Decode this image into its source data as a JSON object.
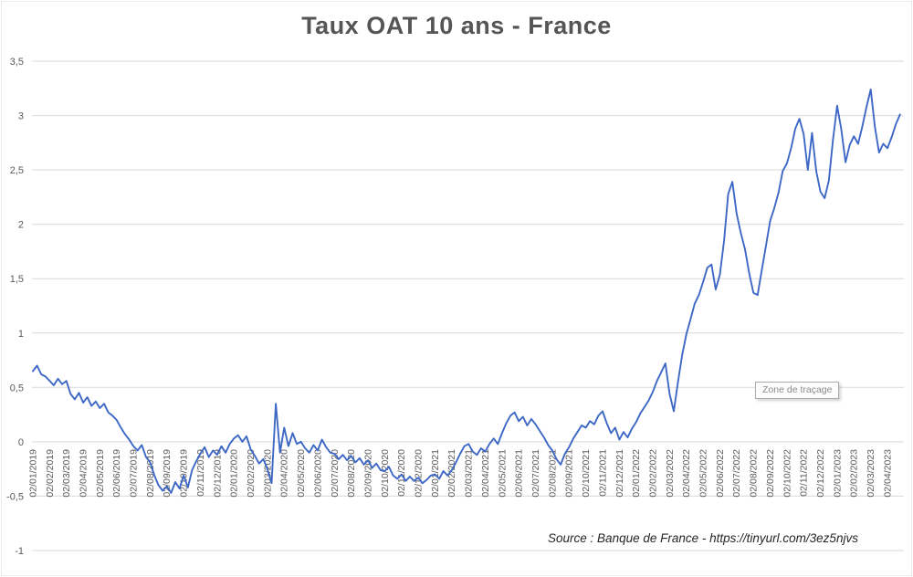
{
  "title": "Taux OAT 10 ans - France",
  "source": "Source : Banque de France - https://tinyurl.com/3ez5njvs",
  "plot_tooltip": "Zone de traçage",
  "colors": {
    "line": "#3E68C6",
    "grid": "#D9D9D9",
    "axis_text": "#595959",
    "title_text": "#555555"
  },
  "chart_data": {
    "type": "line",
    "title": "Taux OAT 10 ans - France",
    "xlabel": "",
    "ylabel": "",
    "ylim": [
      -1,
      3.5
    ],
    "grid": true,
    "legend": "none",
    "line_color": "#3E68C6",
    "y_ticks": [
      {
        "value": 3.5,
        "label": "3,5"
      },
      {
        "value": 3,
        "label": "3"
      },
      {
        "value": 2.5,
        "label": "2,5"
      },
      {
        "value": 2,
        "label": "2"
      },
      {
        "value": 1.5,
        "label": "1,5"
      },
      {
        "value": 1,
        "label": "1"
      },
      {
        "value": 0.5,
        "label": "0,5"
      },
      {
        "value": 0,
        "label": "0"
      },
      {
        "value": -0.5,
        "label": "-0,5"
      },
      {
        "value": -1,
        "label": "-1"
      }
    ],
    "x_labels": [
      "02/01/2019",
      "02/02/2019",
      "02/03/2019",
      "02/04/2019",
      "02/05/2019",
      "02/06/2019",
      "02/07/2019",
      "02/08/2019",
      "02/09/2019",
      "02/10/2019",
      "02/11/2019",
      "02/12/2019",
      "02/01/2020",
      "02/02/2020",
      "02/03/2020",
      "02/04/2020",
      "02/05/2020",
      "02/06/2020",
      "02/07/2020",
      "02/08/2020",
      "02/09/2020",
      "02/10/2020",
      "02/11/2020",
      "02/12/2020",
      "02/01/2021",
      "02/02/2021",
      "02/03/2021",
      "02/04/2021",
      "02/05/2021",
      "02/06/2021",
      "02/07/2021",
      "02/08/2021",
      "02/09/2021",
      "02/10/2021",
      "02/11/2021",
      "02/12/2021",
      "02/01/2022",
      "02/02/2022",
      "02/03/2022",
      "02/04/2022",
      "02/05/2022",
      "02/06/2022",
      "02/07/2022",
      "02/08/2022",
      "02/09/2022",
      "02/10/2022",
      "02/11/2022",
      "02/12/2022",
      "02/01/2023",
      "02/02/2023",
      "02/03/2023",
      "02/04/2023"
    ],
    "points_per_label": 4,
    "values": [
      0.65,
      0.7,
      0.62,
      0.6,
      0.56,
      0.52,
      0.58,
      0.53,
      0.56,
      0.44,
      0.39,
      0.45,
      0.36,
      0.41,
      0.33,
      0.37,
      0.31,
      0.35,
      0.27,
      0.24,
      0.2,
      0.13,
      0.07,
      0.02,
      -0.04,
      -0.08,
      -0.03,
      -0.14,
      -0.19,
      -0.31,
      -0.4,
      -0.45,
      -0.41,
      -0.47,
      -0.37,
      -0.43,
      -0.31,
      -0.42,
      -0.26,
      -0.18,
      -0.11,
      -0.05,
      -0.14,
      -0.08,
      -0.12,
      -0.04,
      -0.1,
      -0.02,
      0.03,
      0.06,
      0.0,
      0.05,
      -0.07,
      -0.13,
      -0.2,
      -0.16,
      -0.25,
      -0.38,
      0.35,
      -0.1,
      0.13,
      -0.04,
      0.08,
      -0.02,
      0.0,
      -0.06,
      -0.1,
      -0.03,
      -0.08,
      0.02,
      -0.05,
      -0.1,
      -0.11,
      -0.16,
      -0.12,
      -0.17,
      -0.13,
      -0.19,
      -0.15,
      -0.21,
      -0.17,
      -0.24,
      -0.2,
      -0.26,
      -0.27,
      -0.23,
      -0.31,
      -0.34,
      -0.3,
      -0.36,
      -0.32,
      -0.36,
      -0.33,
      -0.38,
      -0.35,
      -0.31,
      -0.3,
      -0.34,
      -0.27,
      -0.31,
      -0.26,
      -0.19,
      -0.11,
      -0.04,
      -0.02,
      -0.09,
      -0.12,
      -0.06,
      -0.09,
      -0.02,
      0.03,
      -0.02,
      0.08,
      0.17,
      0.24,
      0.27,
      0.19,
      0.23,
      0.15,
      0.21,
      0.16,
      0.1,
      0.04,
      -0.03,
      -0.08,
      -0.16,
      -0.21,
      -0.11,
      -0.05,
      0.03,
      0.09,
      0.15,
      0.13,
      0.19,
      0.16,
      0.24,
      0.28,
      0.17,
      0.08,
      0.13,
      0.02,
      0.09,
      0.04,
      0.12,
      0.18,
      0.26,
      0.32,
      0.38,
      0.46,
      0.56,
      0.64,
      0.72,
      0.44,
      0.28,
      0.55,
      0.8,
      0.99,
      1.13,
      1.27,
      1.35,
      1.47,
      1.6,
      1.63,
      1.4,
      1.54,
      1.85,
      2.28,
      2.39,
      2.1,
      1.92,
      1.77,
      1.55,
      1.37,
      1.35,
      1.58,
      1.8,
      2.03,
      2.15,
      2.29,
      2.49,
      2.56,
      2.7,
      2.88,
      2.97,
      2.83,
      2.5,
      2.84,
      2.49,
      2.3,
      2.24,
      2.4,
      2.78,
      3.09,
      2.87,
      2.57,
      2.73,
      2.81,
      2.74,
      2.9,
      3.08,
      3.24,
      2.9,
      2.66,
      2.74,
      2.7,
      2.8,
      2.92,
      3.01
    ]
  }
}
